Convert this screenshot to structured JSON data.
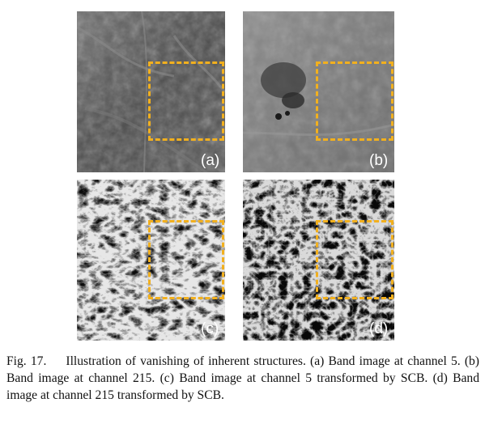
{
  "figure": {
    "panels": [
      {
        "id": "a",
        "label": "(a)",
        "description_key": "band-image-channel-5"
      },
      {
        "id": "b",
        "label": "(b)",
        "description_key": "band-image-channel-215"
      },
      {
        "id": "c",
        "label": "(c)",
        "description_key": "scb-channel-5"
      },
      {
        "id": "d",
        "label": "(d)",
        "description_key": "scb-channel-215"
      }
    ],
    "highlight_color": "#f2b01e",
    "caption": {
      "number": "Fig. 17.",
      "text": "Illustration of vanishing of inherent structures. (a) Band image at channel 5. (b) Band image at channel 215. (c) Band image at channel 5 transformed by SCB. (d) Band image at channel 215 transformed by SCB."
    }
  }
}
